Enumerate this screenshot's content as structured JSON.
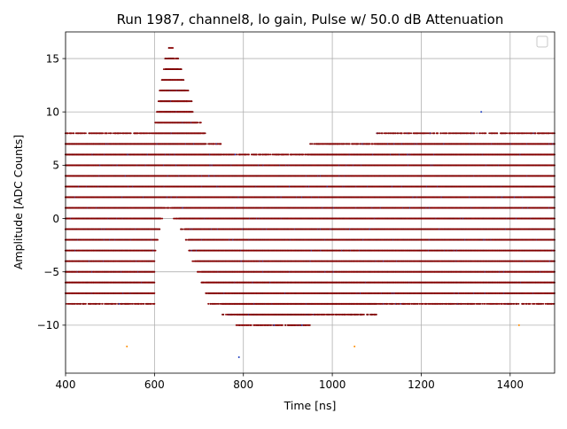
{
  "chart_data": {
    "type": "scatter",
    "title": "Run 1987, channel8, lo gain, Pulse w/ 50.0 dB Attenuation",
    "xlabel": "Time [ns]",
    "ylabel": "Amplitude [ADC Counts]",
    "xlim": [
      400,
      1500
    ],
    "ylim": [
      -14.5,
      17.5
    ],
    "x_ticks": [
      400,
      600,
      800,
      1000,
      1200,
      1400
    ],
    "y_ticks": [
      -10,
      -5,
      0,
      5,
      10,
      15
    ],
    "x_tick_labels": [
      "400",
      "600",
      "800",
      "1000",
      "1200",
      "1400"
    ],
    "y_tick_labels": [
      "−10",
      "−5",
      "0",
      "5",
      "10",
      "15"
    ],
    "grid": true,
    "legend": "top-right (empty)",
    "marker_colors": [
      "#7a0000",
      "#8b0000",
      "#5a0000",
      "#1f3fbf",
      "#ff8c00"
    ],
    "quantization_levels": [
      -12,
      -11,
      -10,
      -9,
      -8,
      -7,
      -6,
      -5,
      -4,
      -3,
      -2,
      -1,
      0,
      1,
      2,
      3,
      4,
      5,
      6,
      7,
      8,
      9,
      10,
      11,
      12,
      13,
      14,
      15,
      16
    ],
    "baseline_range_by_time": [
      {
        "t": 400,
        "min": -8,
        "max": 8
      },
      {
        "t": 600,
        "min": -8,
        "max": 8
      },
      {
        "t": 700,
        "min": -7,
        "max": 7
      },
      {
        "t": 800,
        "min": -10,
        "max": 6
      },
      {
        "t": 900,
        "min": -10,
        "max": 6
      },
      {
        "t": 1000,
        "min": -9,
        "max": 7
      },
      {
        "t": 1200,
        "min": -8,
        "max": 8
      },
      {
        "t": 1400,
        "min": -8,
        "max": 8
      },
      {
        "t": 1500,
        "min": -8,
        "max": 8
      }
    ],
    "pulse_envelope": [
      {
        "t": 600,
        "min": -3,
        "max": 8
      },
      {
        "t": 610,
        "min": -1,
        "max": 11
      },
      {
        "t": 620,
        "min": 1,
        "max": 14
      },
      {
        "t": 635,
        "min": 1,
        "max": 16
      },
      {
        "t": 650,
        "min": 0,
        "max": 15
      },
      {
        "t": 665,
        "min": -1,
        "max": 13
      },
      {
        "t": 680,
        "min": -3,
        "max": 11
      },
      {
        "t": 700,
        "min": -5,
        "max": 9
      },
      {
        "t": 720,
        "min": -7,
        "max": 7
      }
    ],
    "outliers": [
      {
        "x": 538,
        "y": -12
      },
      {
        "x": 790,
        "y": -13
      },
      {
        "x": 1050,
        "y": -12
      },
      {
        "x": 1335,
        "y": 10
      },
      {
        "x": 1420,
        "y": -10
      }
    ]
  }
}
